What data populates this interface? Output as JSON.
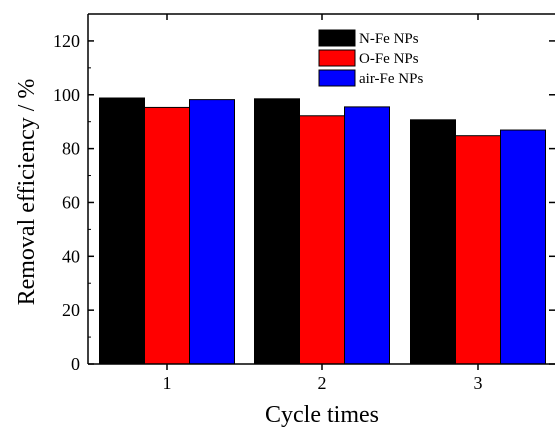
{
  "chart_data": {
    "type": "bar",
    "categories": [
      "1",
      "2",
      "3"
    ],
    "series": [
      {
        "name": "N-Fe NPs",
        "color": "#000000",
        "values": [
          98.8,
          98.5,
          90.7
        ]
      },
      {
        "name": "O-Fe NPs",
        "color": "#ff0000",
        "values": [
          95.3,
          92.2,
          84.8
        ]
      },
      {
        "name": "air-Fe NPs",
        "color": "#0000ff",
        "values": [
          98.2,
          95.5,
          86.9
        ]
      }
    ],
    "title": "",
    "xlabel": "Cycle times",
    "ylabel": "Removal efficiency / %",
    "ylim": [
      0,
      130
    ],
    "yticks": [
      "0",
      "20",
      "40",
      "60",
      "80",
      "100",
      "120"
    ],
    "grid": false,
    "legend_position": "top-right"
  }
}
